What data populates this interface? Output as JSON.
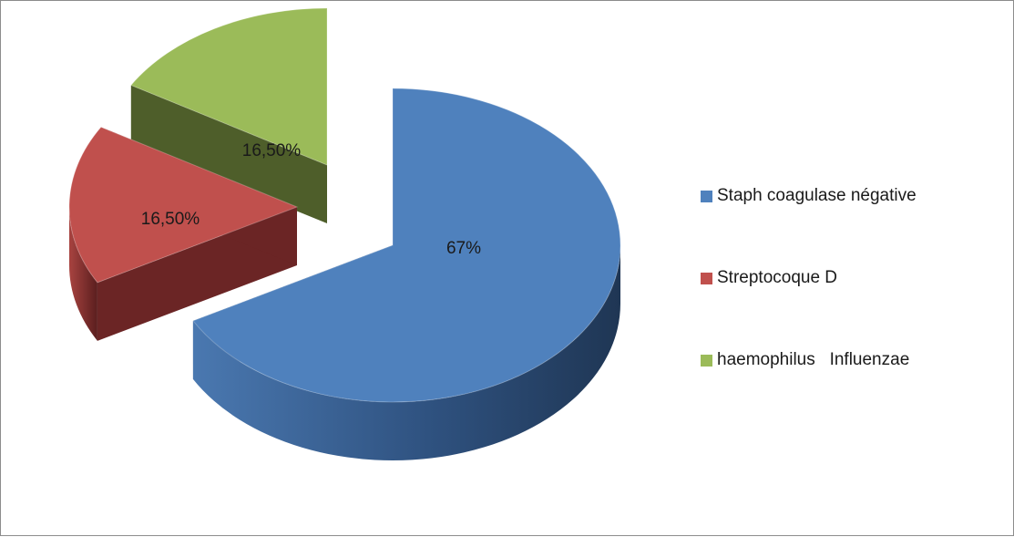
{
  "chart_data": {
    "type": "pie",
    "style": "3d-exploded",
    "categories": [
      "Staph coagulase négative",
      "Streptocoque D",
      "haemophilus   Influenzae"
    ],
    "values": [
      67,
      16.5,
      16.5
    ],
    "data_labels": [
      "67%",
      "16,50%",
      "16,50%"
    ],
    "colors": [
      "#4f81bd",
      "#c0504d",
      "#9bbb59"
    ],
    "side_colors": [
      "#2e4d74",
      "#6b2525",
      "#4e5e2a"
    ],
    "legend_position": "right",
    "title": ""
  }
}
